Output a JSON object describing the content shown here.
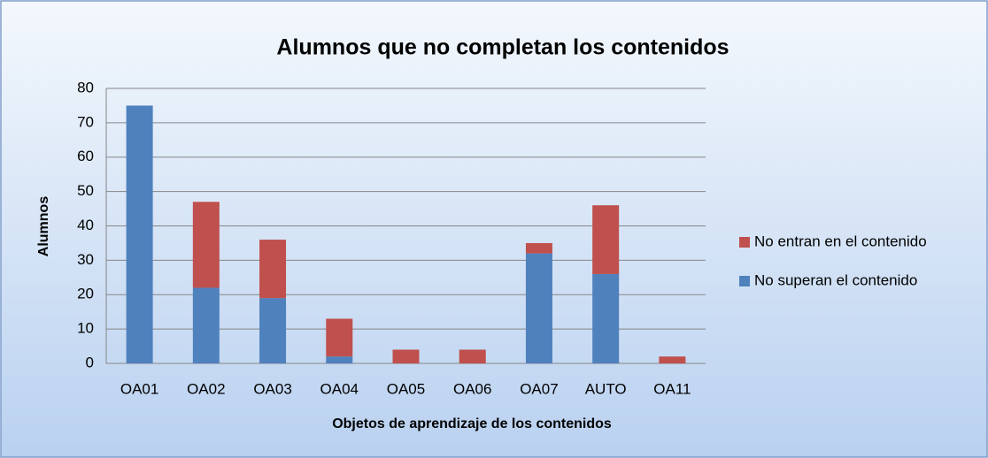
{
  "chart_data": {
    "type": "stacked_bar",
    "title": "Alumnos que no completan los contenidos",
    "x_label": "Objetos de aprendizaje de los contenidos",
    "y_label": "Alumnos",
    "categories": [
      "OA01",
      "OA02",
      "OA03",
      "OA04",
      "OA05",
      "OA06",
      "OA07",
      "AUTO",
      "OA11"
    ],
    "series": [
      {
        "name": "No superan el contenido",
        "color": "#4f81bd",
        "values": [
          75,
          22,
          19,
          2,
          0,
          0,
          32,
          26,
          0
        ]
      },
      {
        "name": "No entran en el contenido",
        "color": "#c0504d",
        "values": [
          0,
          25,
          17,
          11,
          4,
          4,
          3,
          20,
          2
        ]
      }
    ],
    "ylim": [
      0,
      80
    ],
    "yticks": [
      0,
      10,
      20,
      30,
      40,
      50,
      60,
      70,
      80
    ],
    "grid": true,
    "legend": "right"
  }
}
